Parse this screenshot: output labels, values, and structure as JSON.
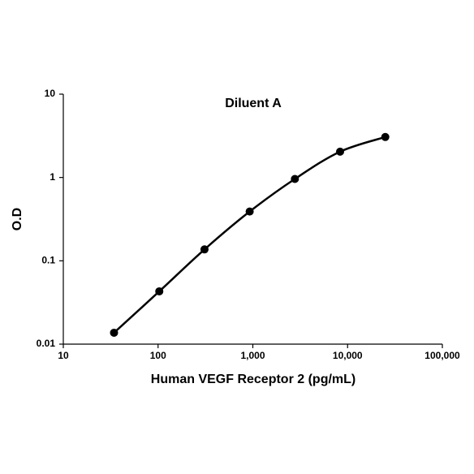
{
  "chart_data": {
    "type": "line",
    "title": "Diluent A",
    "x_label": "Human VEGF Receptor 2 (pg/mL)",
    "y_label": "O.D",
    "x": [
      34.3,
      103,
      309,
      926,
      2778,
      8333,
      25000
    ],
    "series": [
      {
        "name": "Diluent A",
        "color": "#000000",
        "values": [
          0.0137,
          0.043,
          0.137,
          0.39,
          0.96,
          2.04,
          3.06
        ]
      }
    ],
    "x_log": true,
    "y_log": true,
    "grid": false,
    "xlim": [
      10,
      100000
    ],
    "ylim": [
      0.01,
      10
    ],
    "xticks": [
      10,
      100,
      {
        "value": 1000,
        "label": "1,000"
      },
      {
        "value": 10000,
        "label": "10,000"
      },
      {
        "value": 100000,
        "label": "100,000"
      }
    ],
    "yticks": [
      0.01,
      0.1,
      1,
      10
    ]
  }
}
